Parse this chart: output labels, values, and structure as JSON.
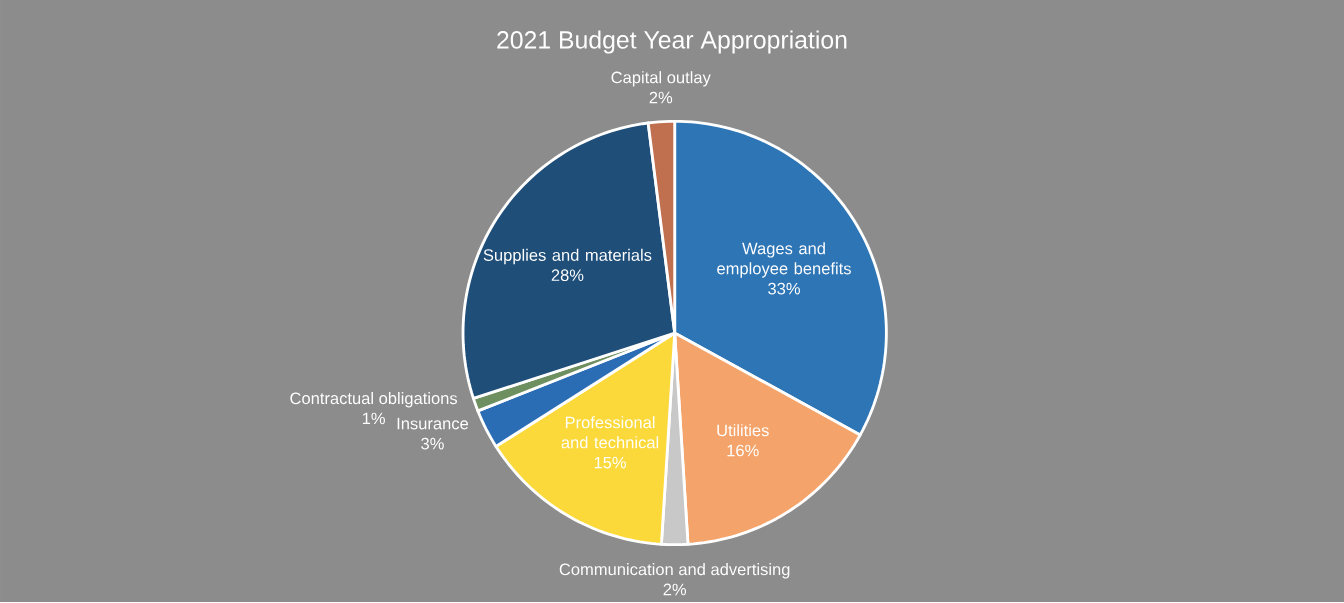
{
  "chart_data": {
    "type": "pie",
    "title": "2021 Budget Year Appropriation",
    "categories": [
      "Wages and employee benefits",
      "Utilities",
      "Communication and advertising",
      "Professional and technical",
      "Insurance",
      "Contractual obligations",
      "Supplies and materials",
      "Capital outlay"
    ],
    "values": [
      33,
      16,
      2,
      15,
      3,
      1,
      28,
      2
    ],
    "colors": [
      "#2e75b6",
      "#f4a46a",
      "#c8c8c8",
      "#fcd93a",
      "#2a6db5",
      "#6e8f60",
      "#1f4e79",
      "#c0704f"
    ],
    "value_labels": [
      "33%",
      "16%",
      "2%",
      "15%",
      "3%",
      "1%",
      "28%",
      "2%"
    ]
  }
}
